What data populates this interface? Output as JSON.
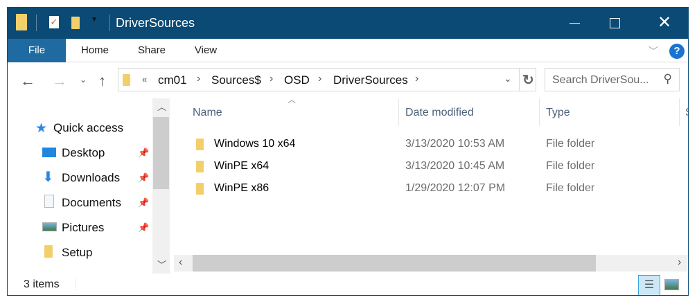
{
  "window": {
    "title": "DriverSources",
    "accent": "#0b4a75",
    "file_tab_color": "#1f6aa0"
  },
  "ribbon": {
    "tabs": [
      "File",
      "Home",
      "Share",
      "View"
    ]
  },
  "address": {
    "overflow": "«",
    "crumbs": [
      "cm01",
      "Sources$",
      "OSD",
      "DriverSources"
    ]
  },
  "search": {
    "placeholder": "Search DriverSou..."
  },
  "nav": {
    "quick_access": "Quick access",
    "items": [
      {
        "label": "Desktop",
        "icon": "desktop-icon",
        "pinned": true
      },
      {
        "label": "Downloads",
        "icon": "download-icon",
        "pinned": true
      },
      {
        "label": "Documents",
        "icon": "documents-icon",
        "pinned": true
      },
      {
        "label": "Pictures",
        "icon": "pictures-icon",
        "pinned": true
      },
      {
        "label": "Setup",
        "icon": "folder-icon",
        "pinned": false
      }
    ]
  },
  "columns": [
    "Name",
    "Date modified",
    "Type",
    "S"
  ],
  "files": [
    {
      "name": "Windows 10 x64",
      "date": "3/13/2020 10:53 AM",
      "type": "File folder"
    },
    {
      "name": "WinPE x64",
      "date": "3/13/2020 10:45 AM",
      "type": "File folder"
    },
    {
      "name": "WinPE x86",
      "date": "1/29/2020 12:07 PM",
      "type": "File folder"
    }
  ],
  "status": {
    "count": "3 items"
  }
}
